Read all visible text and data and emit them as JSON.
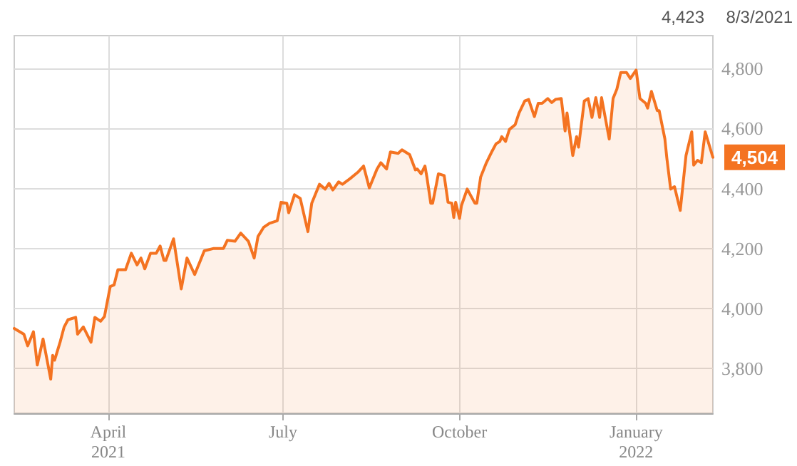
{
  "chart_data": {
    "type": "area",
    "x": [
      "2021-02-11",
      "2021-02-16",
      "2021-02-18",
      "2021-02-21",
      "2021-02-23",
      "2021-02-26",
      "2021-03-02",
      "2021-03-03",
      "2021-03-04",
      "2021-03-07",
      "2021-03-09",
      "2021-03-11",
      "2021-03-15",
      "2021-03-16",
      "2021-03-19",
      "2021-03-23",
      "2021-03-25",
      "2021-03-28",
      "2021-03-30",
      "2021-04-02",
      "2021-04-04",
      "2021-04-06",
      "2021-04-10",
      "2021-04-13",
      "2021-04-16",
      "2021-04-18",
      "2021-04-20",
      "2021-04-23",
      "2021-04-26",
      "2021-04-28",
      "2021-04-30",
      "2021-05-01",
      "2021-05-05",
      "2021-05-09",
      "2021-05-12",
      "2021-05-16",
      "2021-05-19",
      "2021-05-21",
      "2021-05-26",
      "2021-05-31",
      "2021-06-02",
      "2021-06-06",
      "2021-06-09",
      "2021-06-13",
      "2021-06-16",
      "2021-06-18",
      "2021-06-21",
      "2021-06-24",
      "2021-06-28",
      "2021-06-30",
      "2021-07-03",
      "2021-07-04",
      "2021-07-07",
      "2021-07-10",
      "2021-07-14",
      "2021-07-16",
      "2021-07-20",
      "2021-07-23",
      "2021-07-25",
      "2021-07-27",
      "2021-07-30",
      "2021-08-01",
      "2021-08-05",
      "2021-08-09",
      "2021-08-12",
      "2021-08-15",
      "2021-08-19",
      "2021-08-21",
      "2021-08-24",
      "2021-08-26",
      "2021-08-30",
      "2021-09-01",
      "2021-09-05",
      "2021-09-08",
      "2021-09-09",
      "2021-09-11",
      "2021-09-13",
      "2021-09-14",
      "2021-09-16",
      "2021-09-17",
      "2021-09-20",
      "2021-09-23",
      "2021-09-25",
      "2021-09-27",
      "2021-09-28",
      "2021-09-29",
      "2021-10-01",
      "2021-10-02",
      "2021-10-05",
      "2021-10-09",
      "2021-10-10",
      "2021-10-12",
      "2021-10-15",
      "2021-10-18",
      "2021-10-20",
      "2021-10-22",
      "2021-10-23",
      "2021-10-25",
      "2021-10-27",
      "2021-10-30",
      "2021-11-01",
      "2021-11-04",
      "2021-11-06",
      "2021-11-09",
      "2021-11-11",
      "2021-11-13",
      "2021-11-16",
      "2021-11-18",
      "2021-11-20",
      "2021-11-23",
      "2021-11-25",
      "2021-11-26",
      "2021-11-29",
      "2021-12-01",
      "2021-12-02",
      "2021-12-05",
      "2021-12-07",
      "2021-12-09",
      "2021-12-11",
      "2021-12-13",
      "2021-12-14",
      "2021-12-18",
      "2021-12-20",
      "2021-12-22",
      "2021-12-24",
      "2021-12-27",
      "2021-12-29",
      "2022-01-01",
      "2022-01-03",
      "2022-01-06",
      "2022-01-07",
      "2022-01-09",
      "2022-01-12",
      "2022-01-13",
      "2022-01-16",
      "2022-01-17",
      "2022-01-19",
      "2022-01-21",
      "2022-01-24",
      "2022-01-27",
      "2022-01-30",
      "2022-01-31",
      "2022-02-02",
      "2022-02-04",
      "2022-02-06",
      "2022-02-10"
    ],
    "series": [
      {
        "color": "#f47321",
        "values": [
          3933,
          3914,
          3875,
          3922,
          3811,
          3898,
          3764,
          3843,
          3827,
          3890,
          3938,
          3962,
          3970,
          3914,
          3938,
          3887,
          3970,
          3957,
          3973,
          4073,
          4078,
          4129,
          4129,
          4184,
          4145,
          4168,
          4132,
          4184,
          4184,
          4208,
          4160,
          4160,
          4232,
          4065,
          4168,
          4113,
          4160,
          4192,
          4200,
          4200,
          4227,
          4224,
          4251,
          4224,
          4168,
          4240,
          4271,
          4284,
          4292,
          4354,
          4351,
          4319,
          4379,
          4367,
          4256,
          4351,
          4414,
          4398,
          4417,
          4395,
          4422,
          4414,
          4433,
          4454,
          4475,
          4402,
          4465,
          4486,
          4465,
          4522,
          4517,
          4529,
          4513,
          4462,
          4465,
          4449,
          4475,
          4438,
          4351,
          4351,
          4449,
          4443,
          4354,
          4351,
          4303,
          4354,
          4300,
          4343,
          4398,
          4351,
          4351,
          4438,
          4486,
          4525,
          4549,
          4557,
          4573,
          4557,
          4597,
          4613,
          4652,
          4692,
          4697,
          4640,
          4684,
          4684,
          4700,
          4687,
          4697,
          4700,
          4592,
          4652,
          4510,
          4573,
          4538,
          4692,
          4700,
          4637,
          4703,
          4637,
          4703,
          4565,
          4700,
          4732,
          4787,
          4787,
          4767,
          4795,
          4700,
          4684,
          4668,
          4724,
          4660,
          4660,
          4565,
          4502,
          4398,
          4406,
          4327,
          4510,
          4589,
          4478,
          4494,
          4486,
          4589,
          4504
        ],
        "value_labels": [
          null,
          null,
          null,
          null,
          null,
          null,
          null,
          null,
          null,
          null,
          null,
          null,
          null,
          null,
          null,
          null,
          null,
          null,
          null,
          null,
          null,
          null,
          null,
          null,
          null,
          null,
          null,
          null,
          null,
          null,
          null,
          null,
          null,
          null,
          null,
          null,
          null,
          null,
          null,
          null,
          null,
          null,
          null,
          null,
          null,
          null,
          null,
          null,
          null,
          null,
          null,
          null,
          null,
          null,
          null,
          null,
          null,
          null,
          null,
          null,
          null,
          null,
          null,
          null,
          null,
          null,
          null,
          null,
          null,
          null,
          null,
          null,
          null,
          null,
          null,
          null,
          null,
          null,
          null,
          null,
          null,
          null,
          null,
          null,
          null,
          null,
          null,
          null,
          null,
          null,
          null,
          null,
          null,
          null,
          null,
          null,
          null,
          null,
          null,
          null,
          null,
          null,
          null,
          null,
          null,
          null,
          null,
          null,
          null,
          null,
          null,
          null,
          null,
          null,
          null,
          null,
          null,
          null,
          null,
          null,
          null,
          null,
          null,
          null,
          null,
          null,
          null,
          null,
          null,
          null,
          null,
          null,
          null,
          null,
          null,
          null,
          null,
          null,
          null,
          null,
          null,
          null,
          null,
          null,
          null,
          "4,504"
        ]
      }
    ],
    "xlim": [
      "2021-02-11",
      "2022-02-10"
    ],
    "xticks": [
      {
        "value": "2021-04-01",
        "label": "April\n2021"
      },
      {
        "value": "2021-07-01",
        "label": "July"
      },
      {
        "value": "2021-10-01",
        "label": "October"
      },
      {
        "value": "2022-01-01",
        "label": "January\n2022"
      }
    ],
    "ylim": [
      3650,
      4910
    ],
    "yticks": [
      {
        "value": 3800,
        "label": "3,800"
      },
      {
        "value": 4000,
        "label": "4,000"
      },
      {
        "value": 4200,
        "label": "4,200"
      },
      {
        "value": 4400,
        "label": "4,400"
      },
      {
        "value": 4600,
        "label": "4,600"
      },
      {
        "value": 4800,
        "label": "4,800"
      }
    ],
    "grid": true,
    "marker": "none",
    "line_style": "solid",
    "annotations": [
      "4,423",
      "8/3/2021"
    ]
  }
}
